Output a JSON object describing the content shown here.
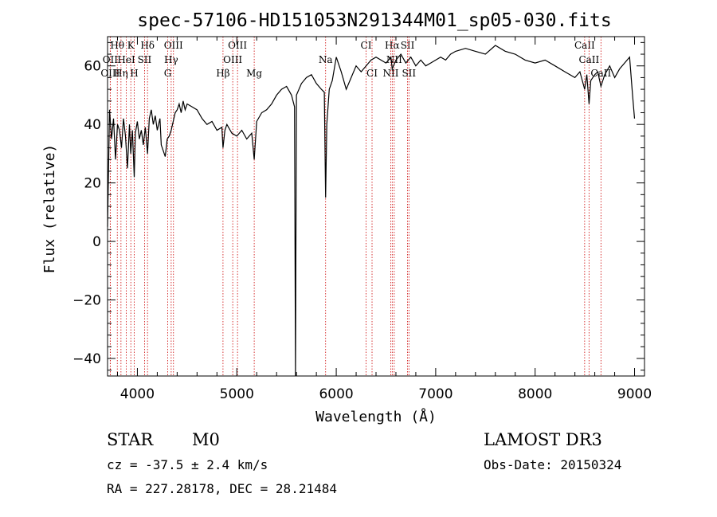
{
  "chart_data": {
    "type": "line",
    "title": "spec-57106-HD151053N291344M01_sp05-030.fits",
    "xlabel": "Wavelength (Å)",
    "ylabel": "Flux (relative)",
    "xlim": [
      3700,
      9100
    ],
    "ylim": [
      -46,
      70
    ],
    "x_ticks": [
      4000,
      5000,
      6000,
      7000,
      8000,
      9000
    ],
    "y_ticks": [
      -40,
      -20,
      0,
      20,
      40,
      60
    ],
    "grid": false,
    "series": [
      {
        "color": "#000000",
        "x": [
          3700,
          3720,
          3740,
          3760,
          3780,
          3800,
          3820,
          3840,
          3860,
          3880,
          3900,
          3920,
          3933,
          3950,
          3968,
          3980,
          4000,
          4020,
          4040,
          4060,
          4080,
          4102,
          4120,
          4140,
          4160,
          4180,
          4200,
          4227,
          4240,
          4260,
          4280,
          4300,
          4320,
          4340,
          4360,
          4380,
          4400,
          4420,
          4440,
          4460,
          4480,
          4500,
          4550,
          4600,
          4650,
          4700,
          4750,
          4800,
          4850,
          4861,
          4880,
          4900,
          4950,
          5000,
          5050,
          5100,
          5150,
          5175,
          5200,
          5250,
          5300,
          5350,
          5400,
          5450,
          5500,
          5550,
          5580,
          5590,
          5600,
          5650,
          5700,
          5750,
          5800,
          5850,
          5880,
          5893,
          5905,
          5930,
          5960,
          6000,
          6050,
          6100,
          6150,
          6200,
          6250,
          6300,
          6350,
          6400,
          6450,
          6500,
          6550,
          6563,
          6600,
          6650,
          6700,
          6750,
          6800,
          6850,
          6900,
          6950,
          7000,
          7050,
          7100,
          7150,
          7200,
          7300,
          7400,
          7500,
          7600,
          7700,
          7800,
          7900,
          8000,
          8100,
          8200,
          8300,
          8400,
          8450,
          8498,
          8520,
          8542,
          8560,
          8600,
          8630,
          8662,
          8700,
          8750,
          8800,
          8850,
          8900,
          8950,
          8980,
          9000
        ],
        "y": [
          5,
          45,
          35,
          42,
          28,
          40,
          38,
          32,
          42,
          36,
          25,
          40,
          30,
          38,
          22,
          37,
          41,
          35,
          38,
          33,
          39,
          30,
          42,
          45,
          40,
          43,
          38,
          42,
          33,
          31,
          29,
          35,
          36,
          38,
          41,
          44,
          45,
          47,
          44,
          48,
          45,
          47,
          46,
          45,
          42,
          40,
          41,
          38,
          39,
          32,
          38,
          40,
          37,
          36,
          38,
          35,
          37,
          28,
          41,
          44,
          45,
          47,
          50,
          52,
          53,
          50,
          46,
          -46,
          50,
          54,
          56,
          57,
          54,
          52,
          51,
          15,
          40,
          52,
          55,
          63,
          58,
          52,
          56,
          60,
          58,
          60,
          62,
          63,
          62,
          61,
          63,
          59,
          62,
          64,
          61,
          63,
          60,
          62,
          60,
          61,
          62,
          63,
          62,
          64,
          65,
          66,
          65,
          64,
          67,
          65,
          64,
          62,
          61,
          62,
          60,
          58,
          56,
          58,
          52,
          57,
          47,
          55,
          57,
          58,
          53,
          57,
          60,
          56,
          59,
          61,
          63,
          50,
          42
        ]
      }
    ],
    "spectral_lines": [
      {
        "name": "Hθ",
        "x": 3798,
        "row": 1
      },
      {
        "name": "K",
        "x": 3934,
        "row": 1
      },
      {
        "name": "Hδ",
        "x": 4102,
        "row": 1
      },
      {
        "name": "OIII",
        "x": 4363,
        "row": 1
      },
      {
        "name": "OIII",
        "x": 5007,
        "row": 1
      },
      {
        "name": "CI",
        "x": 6300,
        "row": 1
      },
      {
        "name": "Hα",
        "x": 6563,
        "row": 1
      },
      {
        "name": "SII",
        "x": 6717,
        "row": 1
      },
      {
        "name": "CaII",
        "x": 8498,
        "row": 1
      },
      {
        "name": "OII",
        "x": 3727,
        "row": 2
      },
      {
        "name": "HeI",
        "x": 3889,
        "row": 2
      },
      {
        "name": "SII",
        "x": 4072,
        "row": 2
      },
      {
        "name": "Hγ",
        "x": 4340,
        "row": 2
      },
      {
        "name": "OIII",
        "x": 4959,
        "row": 2
      },
      {
        "name": "Na",
        "x": 5893,
        "row": 2
      },
      {
        "name": "NII",
        "x": 6583,
        "row": 2
      },
      {
        "name": "CaII",
        "x": 8542,
        "row": 2
      },
      {
        "name": "OIII",
        "x": 3727,
        "row": 3
      },
      {
        "name": "Hη",
        "x": 3835,
        "row": 3
      },
      {
        "name": "H",
        "x": 3968,
        "row": 3
      },
      {
        "name": "G",
        "x": 4305,
        "row": 3
      },
      {
        "name": "Hβ",
        "x": 4861,
        "row": 3
      },
      {
        "name": "Mg",
        "x": 5175,
        "row": 3
      },
      {
        "name": "CI",
        "x": 6360,
        "row": 3
      },
      {
        "name": "NII",
        "x": 6548,
        "row": 3
      },
      {
        "name": "SII",
        "x": 6731,
        "row": 3
      },
      {
        "name": "CaII",
        "x": 8662,
        "row": 3
      }
    ],
    "spectral_line_color": "#cc0000"
  },
  "info": {
    "object_class": "STAR",
    "subclass": "M0",
    "survey": "LAMOST DR3",
    "redshift": "cz = -37.5 ± 2.4 km/s",
    "obs_date": "Obs-Date: 20150324",
    "coords": "RA = 227.28178, DEC =  28.21484"
  }
}
